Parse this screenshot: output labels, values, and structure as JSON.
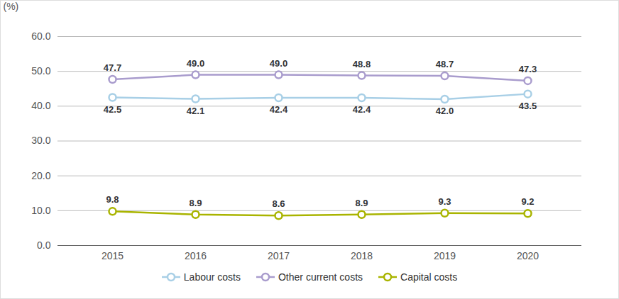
{
  "chart_data": {
    "type": "line",
    "categories": [
      "2015",
      "2016",
      "2017",
      "2018",
      "2019",
      "2020"
    ],
    "y_label": "(%)",
    "ylim": [
      0,
      60
    ],
    "yticks": [
      {
        "value": 0,
        "label": "0.0"
      },
      {
        "value": 10,
        "label": "10.0"
      },
      {
        "value": 20,
        "label": "20.0"
      },
      {
        "value": 30,
        "label": "30.0"
      },
      {
        "value": 40,
        "label": "40.0"
      },
      {
        "value": 50,
        "label": "50.0"
      },
      {
        "value": 60,
        "label": "60.0"
      }
    ],
    "grid": true,
    "data_labels": true,
    "legend": "bottom",
    "series": [
      {
        "name": "Labour costs",
        "color": "#a8cfe6",
        "marker": "circle",
        "values": [
          42.5,
          42.1,
          42.4,
          42.4,
          42.0,
          43.5
        ],
        "value_labels": [
          "42.5",
          "42.1",
          "42.4",
          "42.4",
          "42.0",
          "43.5"
        ]
      },
      {
        "name": "Other current costs",
        "color": "#a99ccd",
        "marker": "circle",
        "values": [
          47.7,
          49.0,
          49.0,
          48.8,
          48.7,
          47.3
        ],
        "value_labels": [
          "47.7",
          "49.0",
          "49.0",
          "48.8",
          "48.7",
          "47.3"
        ]
      },
      {
        "name": "Capital costs",
        "color": "#a9b400",
        "marker": "circle",
        "values": [
          9.8,
          8.9,
          8.6,
          8.9,
          9.3,
          9.2
        ]
      }
    ]
  }
}
